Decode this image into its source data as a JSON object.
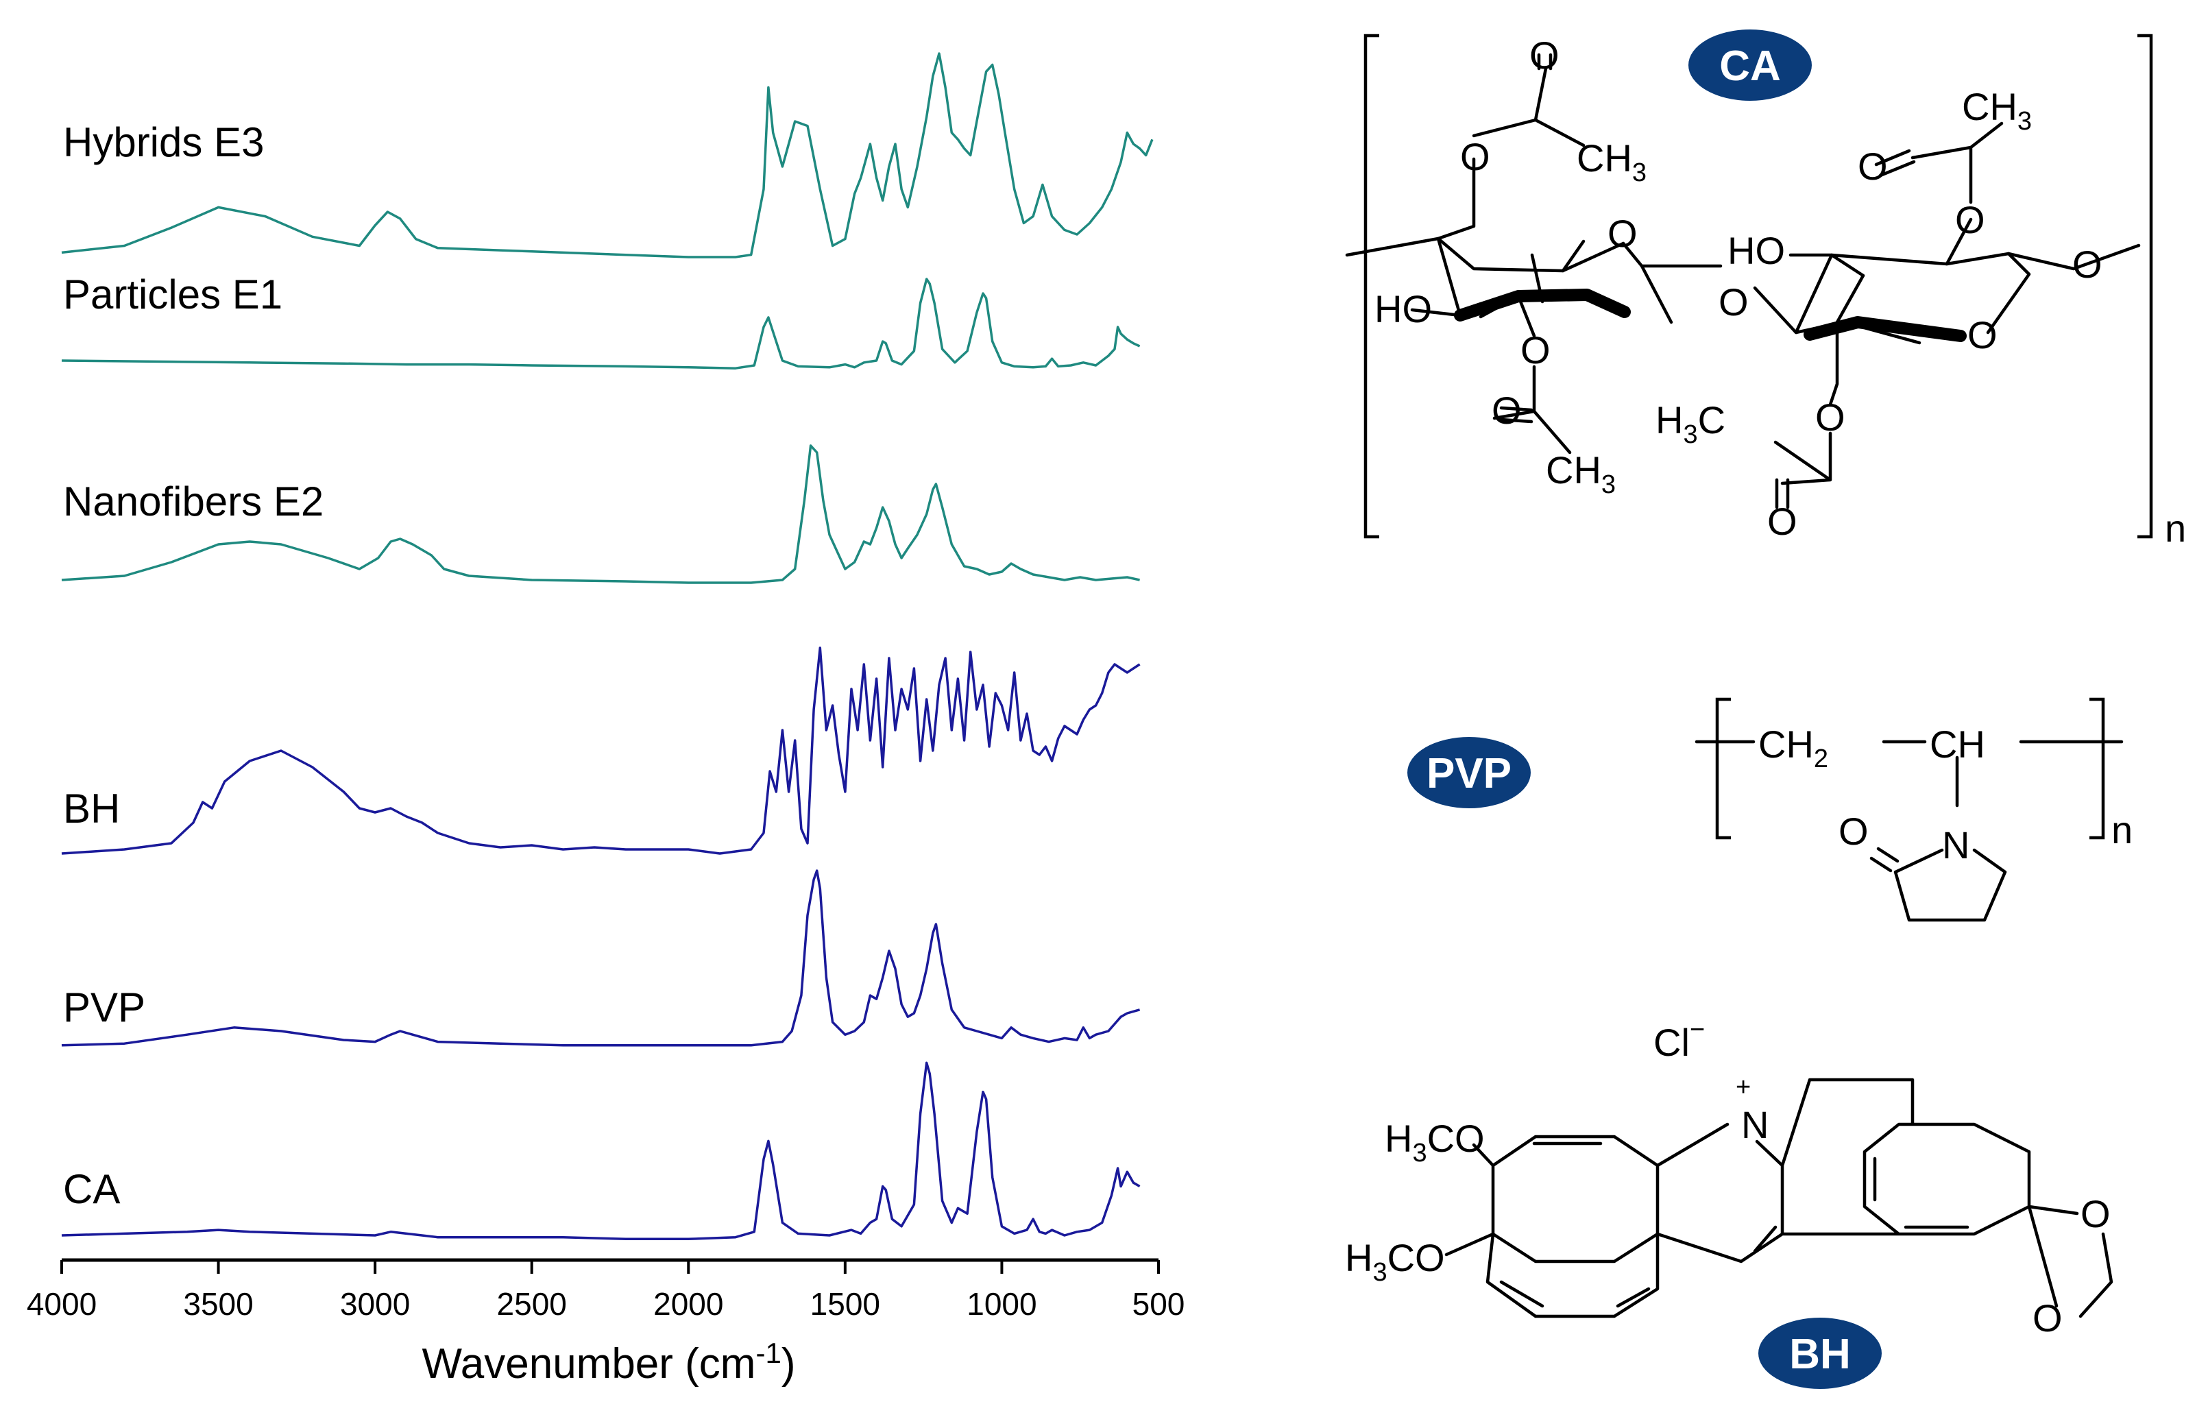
{
  "chart_data": {
    "type": "line",
    "title": "",
    "xlabel": "Wavenumber (cm",
    "xlabel_sup": "-1",
    "xlabel_close": ")",
    "ylabel": "",
    "xlim": [
      4000,
      500
    ],
    "x_reversed": true,
    "x_ticks": [
      4000,
      3500,
      3000,
      2500,
      2000,
      1500,
      1000,
      500
    ],
    "grid": false,
    "legend": "labels placed above each trace",
    "series": [
      {
        "name": "Hybrids E3",
        "color": "#1f8a80",
        "x": [
          4000,
          3800,
          3650,
          3500,
          3350,
          3200,
          3050,
          3000,
          2960,
          2920,
          2870,
          2800,
          2600,
          2400,
          2200,
          2000,
          1850,
          1800,
          1760,
          1745,
          1730,
          1700,
          1660,
          1620,
          1580,
          1540,
          1500,
          1470,
          1450,
          1420,
          1400,
          1380,
          1360,
          1340,
          1320,
          1300,
          1270,
          1240,
          1220,
          1200,
          1180,
          1160,
          1140,
          1120,
          1100,
          1080,
          1050,
          1030,
          1010,
          990,
          960,
          930,
          900,
          870,
          840,
          800,
          760,
          720,
          680,
          650,
          620,
          600,
          580,
          560,
          540,
          520
        ],
        "y": [
          0.02,
          0.05,
          0.13,
          0.22,
          0.18,
          0.09,
          0.05,
          0.14,
          0.2,
          0.17,
          0.08,
          0.04,
          0.03,
          0.02,
          0.01,
          0.0,
          0.0,
          0.01,
          0.3,
          0.75,
          0.55,
          0.4,
          0.6,
          0.58,
          0.3,
          0.05,
          0.08,
          0.28,
          0.35,
          0.5,
          0.35,
          0.25,
          0.4,
          0.5,
          0.3,
          0.22,
          0.4,
          0.62,
          0.8,
          0.9,
          0.75,
          0.55,
          0.52,
          0.48,
          0.45,
          0.6,
          0.82,
          0.85,
          0.72,
          0.55,
          0.3,
          0.15,
          0.18,
          0.32,
          0.18,
          0.12,
          0.1,
          0.15,
          0.22,
          0.3,
          0.42,
          0.55,
          0.5,
          0.48,
          0.45,
          0.52
        ]
      },
      {
        "name": "Particles E1",
        "color": "#1f8a80",
        "x": [
          4000,
          3700,
          3400,
          3100,
          2900,
          2700,
          2500,
          2200,
          2000,
          1850,
          1790,
          1760,
          1745,
          1730,
          1700,
          1650,
          1550,
          1500,
          1470,
          1440,
          1400,
          1380,
          1370,
          1350,
          1320,
          1280,
          1260,
          1240,
          1230,
          1215,
          1190,
          1150,
          1110,
          1080,
          1060,
          1050,
          1030,
          1000,
          960,
          900,
          860,
          840,
          820,
          780,
          740,
          700,
          660,
          640,
          630,
          620,
          600,
          580,
          560
        ],
        "y": [
          0.1,
          0.09,
          0.08,
          0.07,
          0.06,
          0.06,
          0.05,
          0.04,
          0.03,
          0.02,
          0.05,
          0.45,
          0.55,
          0.4,
          0.1,
          0.04,
          0.03,
          0.06,
          0.03,
          0.08,
          0.1,
          0.3,
          0.28,
          0.1,
          0.06,
          0.2,
          0.7,
          0.95,
          0.9,
          0.7,
          0.22,
          0.08,
          0.2,
          0.6,
          0.8,
          0.75,
          0.3,
          0.08,
          0.04,
          0.03,
          0.04,
          0.12,
          0.04,
          0.05,
          0.08,
          0.05,
          0.15,
          0.22,
          0.45,
          0.38,
          0.32,
          0.28,
          0.25
        ]
      },
      {
        "name": "Nanofibers E2",
        "color": "#1f8a80",
        "x": [
          4000,
          3800,
          3650,
          3500,
          3400,
          3300,
          3150,
          3050,
          2990,
          2950,
          2920,
          2880,
          2820,
          2780,
          2700,
          2500,
          2200,
          2000,
          1800,
          1700,
          1660,
          1630,
          1610,
          1590,
          1570,
          1550,
          1500,
          1470,
          1440,
          1420,
          1400,
          1380,
          1360,
          1340,
          1320,
          1300,
          1270,
          1240,
          1220,
          1210,
          1190,
          1160,
          1120,
          1080,
          1040,
          1000,
          970,
          940,
          900,
          850,
          800,
          750,
          700,
          650,
          600,
          560
        ],
        "y": [
          0.02,
          0.05,
          0.15,
          0.28,
          0.3,
          0.28,
          0.18,
          0.1,
          0.18,
          0.3,
          0.32,
          0.28,
          0.2,
          0.1,
          0.05,
          0.02,
          0.01,
          0.0,
          0.0,
          0.02,
          0.1,
          0.6,
          1.0,
          0.95,
          0.6,
          0.35,
          0.1,
          0.15,
          0.3,
          0.28,
          0.4,
          0.55,
          0.45,
          0.28,
          0.18,
          0.25,
          0.35,
          0.5,
          0.68,
          0.72,
          0.55,
          0.28,
          0.12,
          0.1,
          0.06,
          0.08,
          0.14,
          0.1,
          0.06,
          0.04,
          0.02,
          0.04,
          0.02,
          0.03,
          0.04,
          0.02
        ]
      },
      {
        "name": "BH",
        "color": "#1a1a9a",
        "x": [
          4000,
          3800,
          3650,
          3580,
          3550,
          3520,
          3480,
          3400,
          3300,
          3200,
          3100,
          3050,
          3000,
          2950,
          2900,
          2850,
          2800,
          2700,
          2600,
          2500,
          2400,
          2300,
          2200,
          2100,
          2000,
          1900,
          1800,
          1760,
          1740,
          1720,
          1700,
          1680,
          1660,
          1640,
          1620,
          1600,
          1580,
          1560,
          1540,
          1520,
          1500,
          1480,
          1460,
          1440,
          1420,
          1400,
          1380,
          1360,
          1340,
          1320,
          1300,
          1280,
          1260,
          1240,
          1220,
          1200,
          1180,
          1160,
          1140,
          1120,
          1100,
          1080,
          1060,
          1040,
          1020,
          1000,
          980,
          960,
          940,
          920,
          900,
          880,
          860,
          840,
          820,
          800,
          780,
          760,
          740,
          720,
          700,
          680,
          660,
          640,
          620,
          600,
          580,
          560
        ],
        "y": [
          0.0,
          0.02,
          0.05,
          0.15,
          0.25,
          0.22,
          0.35,
          0.45,
          0.5,
          0.42,
          0.3,
          0.22,
          0.2,
          0.22,
          0.18,
          0.15,
          0.1,
          0.05,
          0.03,
          0.04,
          0.02,
          0.03,
          0.02,
          0.02,
          0.02,
          0.0,
          0.02,
          0.1,
          0.4,
          0.3,
          0.6,
          0.3,
          0.55,
          0.12,
          0.05,
          0.7,
          1.0,
          0.6,
          0.72,
          0.48,
          0.3,
          0.8,
          0.6,
          0.92,
          0.55,
          0.85,
          0.42,
          0.95,
          0.6,
          0.8,
          0.7,
          0.9,
          0.45,
          0.75,
          0.5,
          0.82,
          0.95,
          0.6,
          0.85,
          0.55,
          0.98,
          0.7,
          0.82,
          0.52,
          0.78,
          0.72,
          0.6,
          0.88,
          0.55,
          0.68,
          0.5,
          0.48,
          0.52,
          0.45,
          0.56,
          0.62,
          0.6,
          0.58,
          0.65,
          0.7,
          0.72,
          0.78,
          0.88,
          0.92,
          0.9,
          0.88,
          0.9,
          0.92
        ]
      },
      {
        "name": "PVP",
        "color": "#1a1a9a",
        "x": [
          4000,
          3800,
          3600,
          3450,
          3300,
          3100,
          3000,
          2950,
          2920,
          2880,
          2800,
          2600,
          2400,
          2200,
          2000,
          1800,
          1700,
          1670,
          1640,
          1620,
          1600,
          1590,
          1580,
          1560,
          1540,
          1500,
          1470,
          1440,
          1420,
          1400,
          1380,
          1360,
          1340,
          1320,
          1300,
          1280,
          1260,
          1240,
          1220,
          1210,
          1190,
          1160,
          1120,
          1080,
          1040,
          1000,
          970,
          940,
          900,
          850,
          800,
          760,
          740,
          720,
          700,
          660,
          620,
          600,
          560
        ],
        "y": [
          0.02,
          0.03,
          0.08,
          0.12,
          0.1,
          0.05,
          0.04,
          0.08,
          0.1,
          0.08,
          0.04,
          0.03,
          0.02,
          0.02,
          0.02,
          0.02,
          0.04,
          0.1,
          0.3,
          0.75,
          0.95,
          1.0,
          0.9,
          0.4,
          0.15,
          0.08,
          0.1,
          0.15,
          0.3,
          0.28,
          0.4,
          0.55,
          0.45,
          0.25,
          0.18,
          0.2,
          0.3,
          0.45,
          0.65,
          0.7,
          0.48,
          0.22,
          0.12,
          0.1,
          0.08,
          0.06,
          0.12,
          0.08,
          0.06,
          0.04,
          0.06,
          0.05,
          0.12,
          0.06,
          0.08,
          0.1,
          0.18,
          0.2,
          0.22
        ]
      },
      {
        "name": "CA",
        "color": "#1a1a9a",
        "x": [
          4000,
          3800,
          3600,
          3500,
          3400,
          3200,
          3000,
          2950,
          2900,
          2850,
          2800,
          2600,
          2400,
          2200,
          2000,
          1850,
          1790,
          1760,
          1745,
          1730,
          1700,
          1650,
          1550,
          1480,
          1450,
          1420,
          1400,
          1380,
          1370,
          1350,
          1320,
          1280,
          1260,
          1240,
          1230,
          1215,
          1190,
          1160,
          1140,
          1110,
          1080,
          1060,
          1050,
          1030,
          1000,
          960,
          920,
          900,
          880,
          860,
          840,
          800,
          760,
          720,
          680,
          650,
          630,
          620,
          600,
          580,
          560
        ],
        "y": [
          0.03,
          0.04,
          0.05,
          0.06,
          0.05,
          0.04,
          0.03,
          0.05,
          0.04,
          0.03,
          0.02,
          0.02,
          0.02,
          0.01,
          0.01,
          0.02,
          0.05,
          0.45,
          0.55,
          0.42,
          0.1,
          0.04,
          0.03,
          0.06,
          0.04,
          0.1,
          0.12,
          0.3,
          0.28,
          0.12,
          0.08,
          0.2,
          0.7,
          0.98,
          0.92,
          0.7,
          0.22,
          0.1,
          0.18,
          0.15,
          0.6,
          0.82,
          0.78,
          0.35,
          0.08,
          0.04,
          0.06,
          0.12,
          0.05,
          0.04,
          0.06,
          0.03,
          0.05,
          0.06,
          0.1,
          0.25,
          0.4,
          0.3,
          0.38,
          0.32,
          0.3
        ]
      }
    ]
  },
  "structures": {
    "ca": {
      "badge": "CA",
      "O": "O",
      "CH": "CH",
      "three": "3",
      "H3C_H": "H",
      "H3C_C": "C",
      "HO": "HO",
      "n": "n"
    },
    "pvp": {
      "badge": "PVP",
      "CH2_C": "CH",
      "two": "2",
      "CH": "CH",
      "O": "O",
      "N": "N",
      "n": "n"
    },
    "bh": {
      "badge": "BH",
      "Cl": "Cl",
      "minus": "−",
      "plus": "+",
      "N": "N",
      "H": "H",
      "three": "3",
      "CO": "CO",
      "O": "O"
    }
  },
  "colors": {
    "teal_traces": "#1f8a80",
    "blue_traces": "#1a1a9a",
    "badge_fill": "#0b3c7a"
  }
}
